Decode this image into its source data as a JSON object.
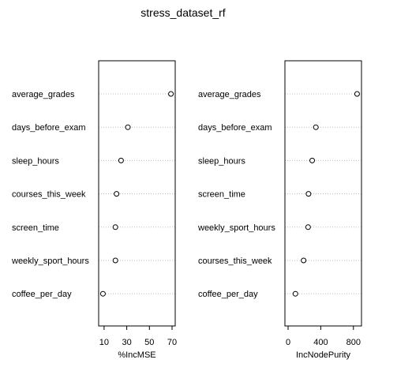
{
  "chart_data": [
    {
      "type": "scatter",
      "title": "stress_dataset_rf",
      "xlabel": "%IncMSE",
      "ylabel": "",
      "xlim": [
        8,
        70
      ],
      "xticks": [
        10,
        30,
        50,
        70
      ],
      "grid": false,
      "points": [
        {
          "label": "average_grades",
          "value": 69
        },
        {
          "label": "days_before_exam",
          "value": 31
        },
        {
          "label": "sleep_hours",
          "value": 25
        },
        {
          "label": "courses_this_week",
          "value": 21
        },
        {
          "label": "screen_time",
          "value": 20
        },
        {
          "label": "weekly_sport_hours",
          "value": 20
        },
        {
          "label": "coffee_per_day",
          "value": 9
        }
      ]
    },
    {
      "type": "scatter",
      "title": "",
      "xlabel": "IncNodePurity",
      "ylabel": "",
      "xlim": [
        0,
        860
      ],
      "xticks": [
        0,
        400,
        800
      ],
      "grid": false,
      "points": [
        {
          "label": "average_grades",
          "value": 845
        },
        {
          "label": "days_before_exam",
          "value": 340
        },
        {
          "label": "sleep_hours",
          "value": 295
        },
        {
          "label": "screen_time",
          "value": 250
        },
        {
          "label": "weekly_sport_hours",
          "value": 245
        },
        {
          "label": "courses_this_week",
          "value": 190
        },
        {
          "label": "coffee_per_day",
          "value": 90
        }
      ]
    }
  ]
}
